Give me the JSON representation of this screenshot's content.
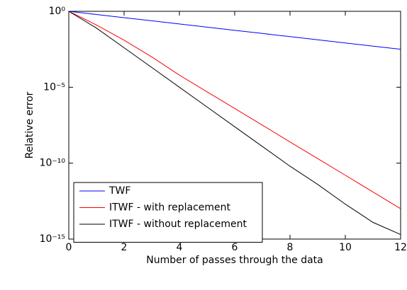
{
  "chart_data": {
    "type": "line",
    "x_label": "Number of passes through the data",
    "y_label": "Relative error",
    "x": [
      0,
      1,
      2,
      3,
      4,
      5,
      6,
      7,
      8,
      9,
      10,
      11,
      12
    ],
    "series": [
      {
        "name": "TWF",
        "color": "#0000ff",
        "values": [
          1,
          0.619,
          0.383,
          0.237,
          0.147,
          0.0909,
          0.0562,
          0.0348,
          0.0215,
          0.0133,
          0.00825,
          0.00511,
          0.00316
        ]
      },
      {
        "name": "ITWF - with replacement",
        "color": "#ff0000",
        "values": [
          1,
          0.126,
          0.0126,
          0.001,
          6.3e-05,
          5e-06,
          4e-07,
          3.2e-08,
          2.5e-09,
          2e-10,
          1.6e-11,
          1.26e-12,
          1e-13
        ]
      },
      {
        "name": "ITWF - without replacement",
        "color": "#000000",
        "values": [
          1,
          0.079,
          0.004,
          0.0002,
          1e-05,
          5e-07,
          2.5e-08,
          1.26e-09,
          6.3e-11,
          4e-12,
          2e-13,
          1.26e-14,
          2e-15
        ]
      }
    ],
    "xlim": [
      0,
      12
    ],
    "xticks": [
      0,
      2,
      4,
      6,
      8,
      10,
      12
    ],
    "ylim": [
      1e-15,
      1
    ],
    "yscale": "log",
    "yticks": [
      {
        "value": 1,
        "label": "10⁰"
      },
      {
        "value": 1e-05,
        "label": "10⁻⁵"
      },
      {
        "value": 1e-10,
        "label": "10⁻¹⁰"
      },
      {
        "value": 1e-15,
        "label": "10⁻¹⁵"
      }
    ],
    "legend": "lower left"
  }
}
